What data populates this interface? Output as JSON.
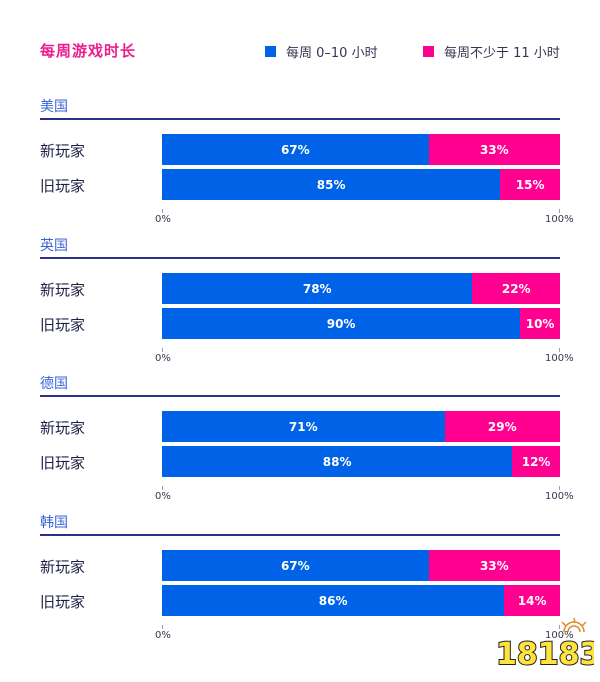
{
  "title": "每周游戏时长",
  "legend": [
    {
      "label": "每周 0–10 小时",
      "color": "#0062e6"
    },
    {
      "label": "每周不少于 11 小时",
      "color": "#ff0090"
    }
  ],
  "axis": {
    "min_label": "0%",
    "max_label": "100%"
  },
  "sections": [
    {
      "country": "美国",
      "rows": [
        {
          "label": "新玩家",
          "low": 67,
          "high": 33,
          "low_text": "67%",
          "high_text": "33%"
        },
        {
          "label": "旧玩家",
          "low": 85,
          "high": 15,
          "low_text": "85%",
          "high_text": "15%"
        }
      ]
    },
    {
      "country": "英国",
      "rows": [
        {
          "label": "新玩家",
          "low": 78,
          "high": 22,
          "low_text": "78%",
          "high_text": "22%"
        },
        {
          "label": "旧玩家",
          "low": 90,
          "high": 10,
          "low_text": "90%",
          "high_text": "10%"
        }
      ]
    },
    {
      "country": "德国",
      "rows": [
        {
          "label": "新玩家",
          "low": 71,
          "high": 29,
          "low_text": "71%",
          "high_text": "29%"
        },
        {
          "label": "旧玩家",
          "low": 88,
          "high": 12,
          "low_text": "88%",
          "high_text": "12%"
        }
      ]
    },
    {
      "country": "韩国",
      "rows": [
        {
          "label": "新玩家",
          "low": 67,
          "high": 33,
          "low_text": "67%",
          "high_text": "33%"
        },
        {
          "label": "旧玩家",
          "low": 86,
          "high": 14,
          "low_text": "86%",
          "high_text": "14%"
        }
      ]
    }
  ],
  "watermark": "18183",
  "chart_data": {
    "type": "bar",
    "orientation": "horizontal-stacked-100",
    "title": "每周游戏时长",
    "legend": [
      "每周 0–10 小时",
      "每周不少于 11 小时"
    ],
    "legend_position": "top-right",
    "xlim": [
      0,
      100
    ],
    "x_tick_labels": [
      "0%",
      "100%"
    ],
    "grid": false,
    "panels": [
      {
        "panel": "美国",
        "categories": [
          "新玩家",
          "旧玩家"
        ],
        "series": [
          {
            "name": "每周 0–10 小时",
            "values": [
              67,
              85
            ]
          },
          {
            "name": "每周不少于 11 小时",
            "values": [
              33,
              15
            ]
          }
        ]
      },
      {
        "panel": "英国",
        "categories": [
          "新玩家",
          "旧玩家"
        ],
        "series": [
          {
            "name": "每周 0–10 小时",
            "values": [
              78,
              90
            ]
          },
          {
            "name": "每周不少于 11 小时",
            "values": [
              22,
              10
            ]
          }
        ]
      },
      {
        "panel": "德国",
        "categories": [
          "新玩家",
          "旧玩家"
        ],
        "series": [
          {
            "name": "每周 0–10 小时",
            "values": [
              71,
              88
            ]
          },
          {
            "name": "每周不少于 11 小时",
            "values": [
              29,
              12
            ]
          }
        ]
      },
      {
        "panel": "韩国",
        "categories": [
          "新玩家",
          "旧玩家"
        ],
        "series": [
          {
            "name": "每周 0–10 小时",
            "values": [
              67,
              86
            ]
          },
          {
            "name": "每周不少于 11 小时",
            "values": [
              33,
              14
            ]
          }
        ]
      }
    ]
  }
}
